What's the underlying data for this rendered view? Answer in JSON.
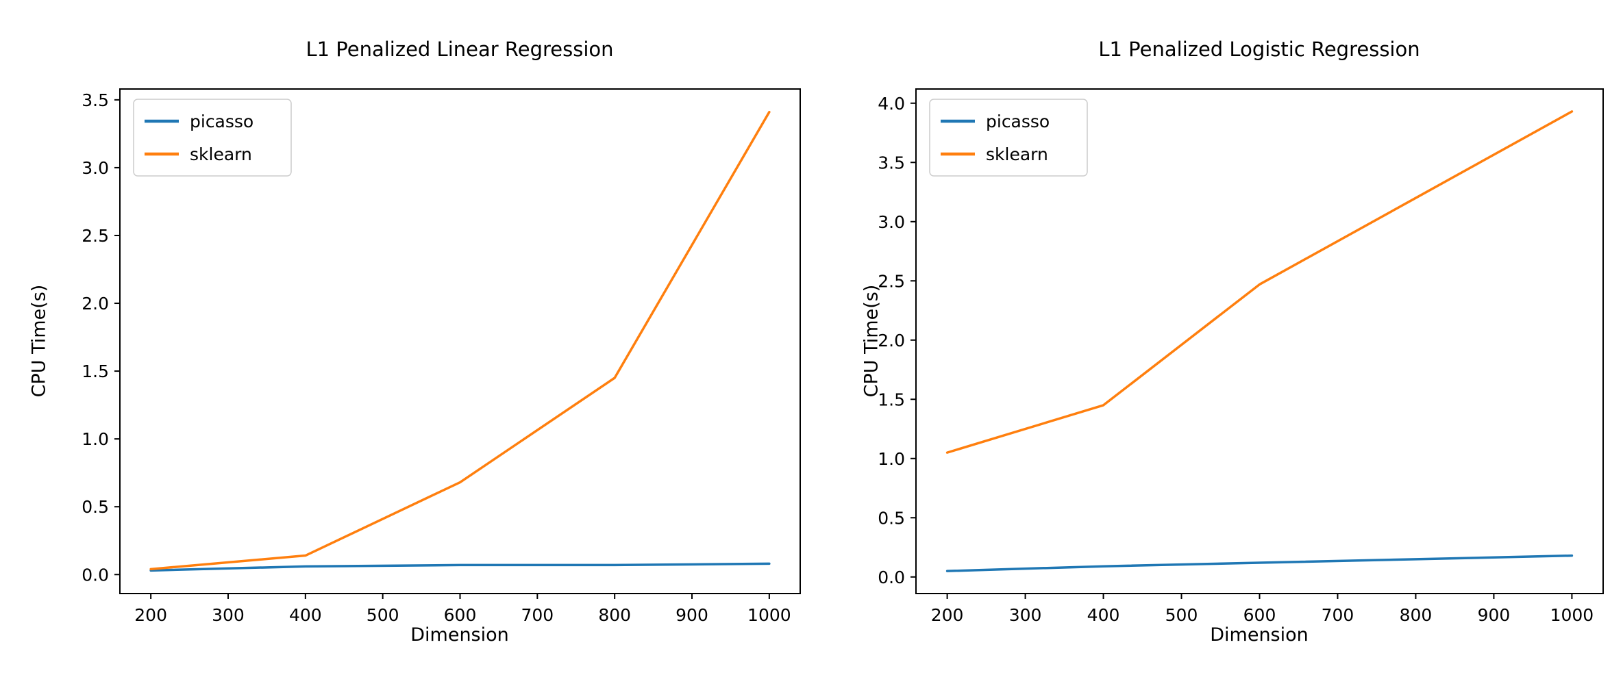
{
  "figure": {
    "background": "#ffffff",
    "text_color": "#000000",
    "spine_color": "#000000"
  },
  "chart_data": [
    {
      "type": "line",
      "title": "L1 Penalized Linear Regression",
      "xlabel": "Dimension",
      "ylabel": "CPU Time(s)",
      "x": [
        200,
        400,
        600,
        800,
        1000
      ],
      "series": [
        {
          "name": "picasso",
          "color": "#1f77b4",
          "values": [
            0.03,
            0.06,
            0.07,
            0.07,
            0.08
          ]
        },
        {
          "name": "sklearn",
          "color": "#ff7f0e",
          "values": [
            0.04,
            0.14,
            0.68,
            1.45,
            3.41
          ]
        }
      ],
      "xlim": [
        160,
        1040
      ],
      "ylim": [
        -0.14,
        3.58
      ],
      "xticks": [
        200,
        300,
        400,
        500,
        600,
        700,
        800,
        900,
        1000
      ],
      "yticks": [
        0.0,
        0.5,
        1.0,
        1.5,
        2.0,
        2.5,
        3.0,
        3.5
      ],
      "legend": {
        "position": "upper left",
        "entries": [
          "picasso",
          "sklearn"
        ]
      },
      "grid": false
    },
    {
      "type": "line",
      "title": "L1 Penalized Logistic Regression",
      "xlabel": "Dimension",
      "ylabel": "CPU Time(s)",
      "x": [
        200,
        400,
        600,
        800,
        1000
      ],
      "series": [
        {
          "name": "picasso",
          "color": "#1f77b4",
          "values": [
            0.05,
            0.09,
            0.12,
            0.15,
            0.18
          ]
        },
        {
          "name": "sklearn",
          "color": "#ff7f0e",
          "values": [
            1.05,
            1.45,
            2.47,
            3.2,
            3.93
          ]
        }
      ],
      "xlim": [
        160,
        1040
      ],
      "ylim": [
        -0.14,
        4.12
      ],
      "xticks": [
        200,
        300,
        400,
        500,
        600,
        700,
        800,
        900,
        1000
      ],
      "yticks": [
        0.0,
        0.5,
        1.0,
        1.5,
        2.0,
        2.5,
        3.0,
        3.5,
        4.0
      ],
      "legend": {
        "position": "upper left",
        "entries": [
          "picasso",
          "sklearn"
        ]
      },
      "grid": false
    }
  ]
}
